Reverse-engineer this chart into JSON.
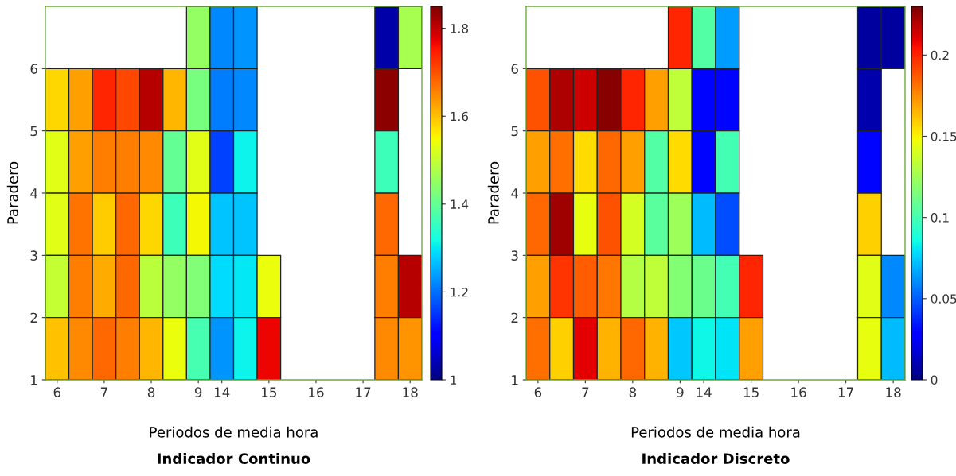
{
  "chart_data": [
    {
      "type": "heatmap",
      "title": "Indicador Continuo",
      "xlabel": "Periodos de media hora",
      "ylabel": "Paradero",
      "categories": [
        "6",
        null,
        "7",
        null,
        "8",
        null,
        "9",
        "14",
        null,
        "15",
        null,
        "16",
        null,
        "17",
        null,
        "18"
      ],
      "ylim": [
        1,
        7
      ],
      "yticks": [
        1,
        2,
        3,
        4,
        5,
        6
      ],
      "clim": [
        1,
        1.85
      ],
      "cticks": [
        1,
        1.2,
        1.4,
        1.6,
        1.8
      ],
      "cells": [
        [
          null,
          null,
          null,
          null,
          null,
          null,
          1.45,
          1.22,
          1.23,
          null,
          null,
          null,
          null,
          null,
          1.03,
          1.47
        ],
        [
          1.58,
          1.63,
          1.74,
          1.71,
          1.81,
          1.61,
          1.42,
          1.21,
          1.22,
          null,
          null,
          null,
          null,
          null,
          1.84,
          null
        ],
        [
          1.53,
          1.63,
          1.66,
          1.66,
          1.65,
          1.4,
          1.53,
          1.16,
          1.31,
          null,
          null,
          null,
          null,
          null,
          1.36,
          null
        ],
        [
          1.53,
          1.67,
          1.59,
          1.68,
          1.58,
          1.36,
          1.55,
          1.27,
          1.27,
          null,
          null,
          null,
          null,
          null,
          1.68,
          null
        ],
        [
          1.5,
          1.66,
          1.62,
          1.68,
          1.49,
          1.45,
          1.43,
          1.29,
          1.3,
          1.54,
          null,
          null,
          null,
          null,
          1.66,
          1.81
        ],
        [
          1.6,
          1.65,
          1.68,
          1.66,
          1.61,
          1.54,
          1.37,
          1.23,
          1.31,
          1.77,
          null,
          null,
          null,
          null,
          1.65,
          1.64
        ]
      ]
    },
    {
      "type": "heatmap",
      "title": "Indicador Discreto",
      "xlabel": "Periodos de media hora",
      "ylabel": "Paradero",
      "categories": [
        "6",
        null,
        "7",
        null,
        "8",
        null,
        "9",
        "14",
        null,
        "15",
        null,
        "16",
        null,
        "17",
        null,
        "18"
      ],
      "ylim": [
        1,
        7
      ],
      "yticks": [
        1,
        2,
        3,
        4,
        5,
        6
      ],
      "clim": [
        0,
        0.23
      ],
      "cticks": [
        0,
        0.05,
        0.1,
        0.15,
        0.2
      ],
      "cells": [
        [
          null,
          null,
          null,
          null,
          null,
          null,
          0.2,
          0.104,
          0.064,
          null,
          null,
          null,
          null,
          null,
          0.007,
          0.007
        ],
        [
          0.189,
          0.221,
          0.214,
          0.228,
          0.2,
          0.17,
          0.133,
          0.03,
          0.03,
          null,
          null,
          null,
          null,
          null,
          0.009,
          null
        ],
        [
          0.17,
          0.182,
          0.156,
          0.184,
          0.17,
          0.104,
          0.156,
          0.03,
          0.099,
          null,
          null,
          null,
          null,
          null,
          0.03,
          null
        ],
        [
          0.184,
          0.223,
          0.145,
          0.189,
          0.14,
          0.106,
          0.124,
          0.071,
          0.046,
          null,
          null,
          null,
          null,
          null,
          0.159,
          null
        ],
        [
          0.17,
          0.196,
          0.186,
          0.18,
          0.131,
          0.133,
          0.117,
          0.11,
          0.099,
          0.2,
          null,
          null,
          null,
          null,
          0.143,
          0.06
        ],
        [
          0.182,
          0.159,
          0.21,
          0.166,
          0.184,
          0.166,
          0.074,
          0.085,
          0.08,
          0.17,
          null,
          null,
          null,
          null,
          0.145,
          0.071
        ]
      ]
    }
  ]
}
